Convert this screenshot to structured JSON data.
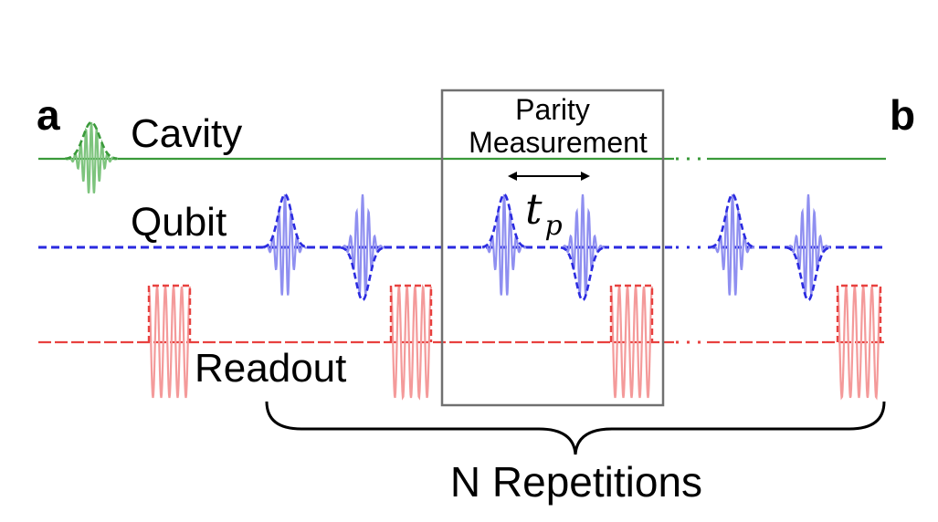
{
  "panels": {
    "a": "a",
    "b": "b"
  },
  "channels": {
    "cavity": {
      "label": "Cavity",
      "color": "#3a9a3a"
    },
    "qubit": {
      "label": "Qubit",
      "color": "#2a2ae0"
    },
    "readout": {
      "label": "Readout",
      "color": "#e8413f"
    }
  },
  "parity_box": {
    "line1": "Parity",
    "line2": "Measurement"
  },
  "tp": {
    "symbol": "t",
    "subscript": "p"
  },
  "repetitions": "N Repetitions",
  "colors": {
    "cavity_fill": "#7dc47d",
    "qubit_fill": "#8f8ff0",
    "readout_fill": "#f49a9a",
    "box_stroke": "#707070"
  }
}
